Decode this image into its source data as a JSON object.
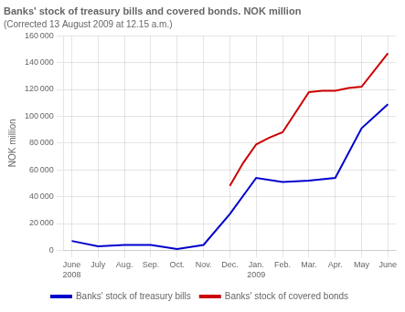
{
  "chart_data": {
    "type": "line",
    "title": "Banks' stock of treasury bills and covered bonds. NOK million",
    "subtitle": "(Corrected 13 August 2009 at 12.15 a.m.)",
    "ylabel": "NOK million",
    "xlim": [
      -0.3,
      12.3
    ],
    "xticks": [
      {
        "value": 0,
        "label": "June\n2008"
      },
      {
        "value": 1,
        "label": "July"
      },
      {
        "value": 2,
        "label": "Aug."
      },
      {
        "value": 3,
        "label": "Sep."
      },
      {
        "value": 4,
        "label": "Oct."
      },
      {
        "value": 5,
        "label": "Nov."
      },
      {
        "value": 6,
        "label": "Dec."
      },
      {
        "value": 7,
        "label": "Jan.\n2009"
      },
      {
        "value": 8,
        "label": "Feb."
      },
      {
        "value": 9,
        "label": "Mar."
      },
      {
        "value": 10,
        "label": "Apr."
      },
      {
        "value": 11,
        "label": "May"
      },
      {
        "value": 12,
        "label": "June"
      }
    ],
    "ylim": [
      0,
      160000
    ],
    "yticks": [
      0,
      {
        "value": 20000,
        "label": "20 000"
      },
      {
        "value": 40000,
        "label": "40 000"
      },
      {
        "value": 60000,
        "label": "60 000"
      },
      {
        "value": 80000,
        "label": "80 000"
      },
      {
        "value": 100000,
        "label": "100 000"
      },
      {
        "value": 120000,
        "label": "120 000"
      },
      {
        "value": 140000,
        "label": "140 000"
      },
      {
        "value": 160000,
        "label": "160 000"
      }
    ],
    "grid": true,
    "legend": "bottom",
    "series": [
      {
        "name": "Banks' stock of treasury bills",
        "color": "#0000cc",
        "x": [
          0,
          1,
          2,
          3,
          4,
          5,
          6,
          7,
          8,
          9,
          10,
          11,
          12
        ],
        "values": [
          7000,
          3000,
          4000,
          4000,
          1000,
          4000,
          27000,
          54000,
          51000,
          52000,
          54000,
          91000,
          109000
        ]
      },
      {
        "name": "Banks' stock of covered bonds",
        "color": "#cc0000",
        "x": [
          6.0,
          6.5,
          7.0,
          7.5,
          8.0,
          9.0,
          9.5,
          10.0,
          10.5,
          11.0,
          12.0
        ],
        "values": [
          48000,
          65000,
          79000,
          84000,
          88000,
          118000,
          119000,
          119000,
          121000,
          122000,
          147000
        ]
      }
    ]
  }
}
